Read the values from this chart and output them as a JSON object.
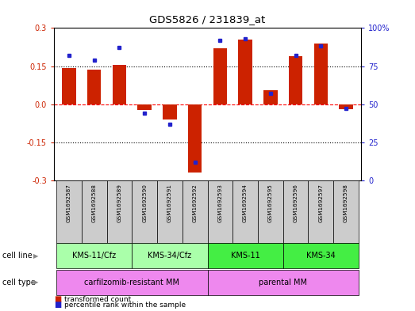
{
  "title": "GDS5826 / 231839_at",
  "samples": [
    "GSM1692587",
    "GSM1692588",
    "GSM1692589",
    "GSM1692590",
    "GSM1692591",
    "GSM1692592",
    "GSM1692593",
    "GSM1692594",
    "GSM1692595",
    "GSM1692596",
    "GSM1692597",
    "GSM1692598"
  ],
  "transformed_count": [
    0.143,
    0.135,
    0.155,
    -0.022,
    -0.06,
    -0.27,
    0.22,
    0.255,
    0.055,
    0.19,
    0.24,
    -0.02
  ],
  "percentile_rank": [
    82,
    79,
    87,
    44,
    37,
    12,
    92,
    93,
    57,
    82,
    88,
    47
  ],
  "bar_color": "#cc2200",
  "dot_color": "#2222cc",
  "ylim_left": [
    -0.3,
    0.3
  ],
  "ylim_right": [
    0,
    100
  ],
  "yticks_left": [
    -0.3,
    -0.15,
    0.0,
    0.15,
    0.3
  ],
  "yticks_right": [
    0,
    25,
    50,
    75,
    100
  ],
  "ytick_labels_right": [
    "0",
    "25",
    "50",
    "75",
    "100%"
  ],
  "hlines": [
    -0.15,
    0.0,
    0.15
  ],
  "hline_colors": [
    "black",
    "red",
    "black"
  ],
  "hline_styles": [
    "dotted",
    "dashed",
    "dotted"
  ],
  "cell_line_groups": [
    {
      "label": "KMS-11/Cfz",
      "start": 0,
      "end": 3,
      "color": "#aaffaa"
    },
    {
      "label": "KMS-34/Cfz",
      "start": 3,
      "end": 6,
      "color": "#aaffaa"
    },
    {
      "label": "KMS-11",
      "start": 6,
      "end": 9,
      "color": "#44ee44"
    },
    {
      "label": "KMS-34",
      "start": 9,
      "end": 12,
      "color": "#44ee44"
    }
  ],
  "cell_type_groups": [
    {
      "label": "carfilzomib-resistant MM",
      "start": 0,
      "end": 6,
      "color": "#ee88ee"
    },
    {
      "label": "parental MM",
      "start": 6,
      "end": 12,
      "color": "#ee88ee"
    }
  ],
  "legend_items": [
    {
      "color": "#cc2200",
      "label": "transformed count"
    },
    {
      "color": "#2222cc",
      "label": "percentile rank within the sample"
    }
  ],
  "bg_color_plot": "#ffffff",
  "sample_bg_color": "#cccccc",
  "bar_width": 0.55
}
